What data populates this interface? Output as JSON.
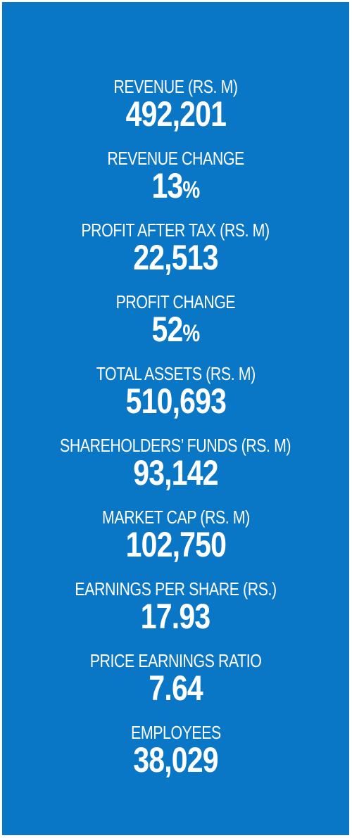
{
  "stats": [
    {
      "label": "REVENUE (RS. M)",
      "value": "492,201",
      "suffix": ""
    },
    {
      "label": "REVENUE CHANGE",
      "value": "13",
      "suffix": "%"
    },
    {
      "label": "PROFIT AFTER TAX (RS. M)",
      "value": "22,513",
      "suffix": ""
    },
    {
      "label": "PROFIT CHANGE",
      "value": "52",
      "suffix": "%"
    },
    {
      "label": "TOTAL ASSETS (RS. M)",
      "value": "510,693",
      "suffix": ""
    },
    {
      "label": "SHAREHOLDERS’ FUNDS (RS. M)",
      "value": "93,142",
      "suffix": ""
    },
    {
      "label": "MARKET CAP (RS. M)",
      "value": "102,750",
      "suffix": ""
    },
    {
      "label": "EARNINGS PER SHARE (RS.)",
      "value": "17.93",
      "suffix": ""
    },
    {
      "label": "PRICE EARNINGS RATIO",
      "value": "7.64",
      "suffix": ""
    },
    {
      "label": "EMPLOYEES",
      "value": "38,029",
      "suffix": ""
    }
  ],
  "colors": {
    "panel_background": "#0a77c6",
    "text": "#ffffff"
  }
}
